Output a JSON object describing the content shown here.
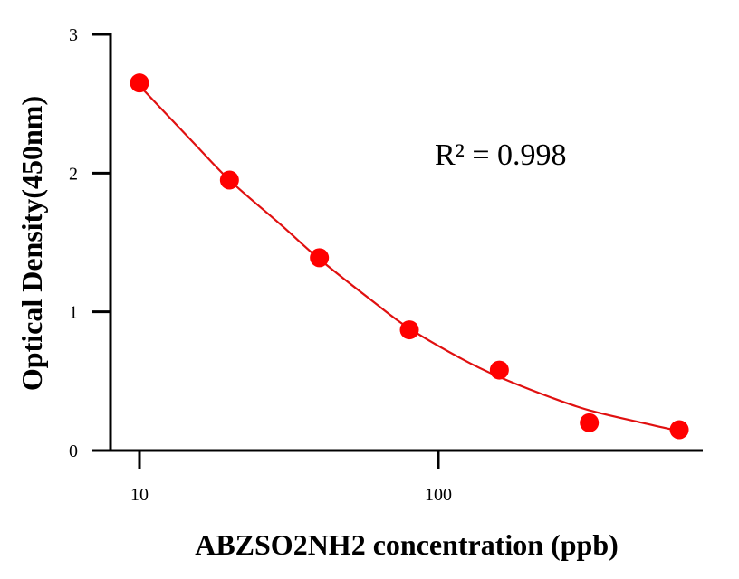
{
  "chart_data": {
    "type": "scatter",
    "title": "",
    "xlabel": "ABZSO2NH2 concentration (ppb)",
    "ylabel": "Optical Density(450nm)",
    "x_scale": "log",
    "xlim": [
      8,
      900
    ],
    "ylim": [
      0,
      3
    ],
    "x_ticks": [
      10,
      100
    ],
    "x_tick_labels": [
      "10",
      "100"
    ],
    "y_ticks": [
      0,
      1,
      2,
      3
    ],
    "y_tick_labels": [
      "0",
      "1",
      "2",
      "3"
    ],
    "grid": false,
    "legend": "none",
    "annotation": "R² = 0.998",
    "series": [
      {
        "x": [
          10,
          20,
          40,
          80,
          160,
          320,
          640
        ],
        "y": [
          2.65,
          1.95,
          1.39,
          0.87,
          0.58,
          0.2,
          0.15
        ],
        "color": "#ff0000",
        "marker": "circle"
      }
    ],
    "fit_curve": {
      "x": [
        10,
        15,
        20,
        30,
        40,
        60,
        80,
        120,
        160,
        240,
        320,
        480,
        640
      ],
      "y": [
        2.63,
        2.23,
        1.95,
        1.62,
        1.38,
        1.08,
        0.88,
        0.66,
        0.53,
        0.38,
        0.29,
        0.2,
        0.14
      ],
      "color": "#e01010"
    }
  }
}
